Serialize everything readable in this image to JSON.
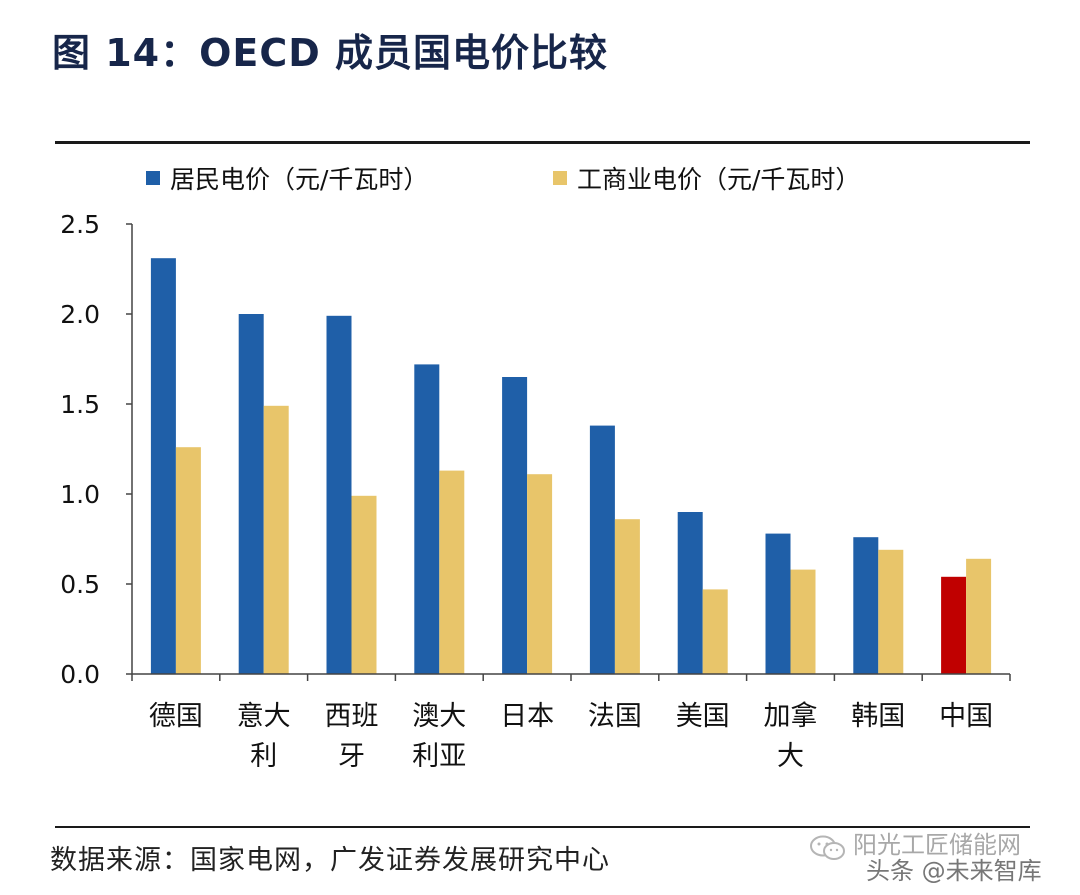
{
  "figure": {
    "title": "图 14：OECD 成员国电价比较",
    "source": "数据来源：国家电网，广发证券发展研究中心"
  },
  "watermark": {
    "line1": "阳光工匠储能网",
    "line2": "头条 @未来智库",
    "icon": "wechat-icon"
  },
  "colors": {
    "residential": "#1f5fa8",
    "industrial": "#e8c56a",
    "highlight": "#c00000",
    "axis": "#444444",
    "title": "#17264a"
  },
  "chart_data": {
    "type": "bar",
    "title": "",
    "xlabel": "",
    "ylabel": "",
    "ylim": [
      0,
      2.5
    ],
    "yticks": [
      "0.0",
      "0.5",
      "1.0",
      "1.5",
      "2.0",
      "2.5"
    ],
    "grid": false,
    "legend_position": "top-left",
    "categories": [
      "德国",
      "意大利",
      "西班牙",
      "澳大利亚",
      "日本",
      "法国",
      "美国",
      "加拿大",
      "韩国",
      "中国"
    ],
    "category_label_lines": [
      [
        "德国"
      ],
      [
        "意大",
        "利"
      ],
      [
        "西班",
        "牙"
      ],
      [
        "澳大",
        "利亚"
      ],
      [
        "日本"
      ],
      [
        "法国"
      ],
      [
        "美国"
      ],
      [
        "加拿",
        "大"
      ],
      [
        "韩国"
      ],
      [
        "中国"
      ]
    ],
    "series": [
      {
        "name": "居民电价（元/千瓦时）",
        "values": [
          2.31,
          2.0,
          1.99,
          1.72,
          1.65,
          1.38,
          0.9,
          0.78,
          0.76,
          0.54
        ]
      },
      {
        "name": "工商业电价（元/千瓦时）",
        "values": [
          1.26,
          1.49,
          0.99,
          1.13,
          1.11,
          0.86,
          0.47,
          0.58,
          0.69,
          0.64
        ]
      }
    ],
    "highlight": {
      "series_index": 0,
      "category": "中国"
    }
  }
}
